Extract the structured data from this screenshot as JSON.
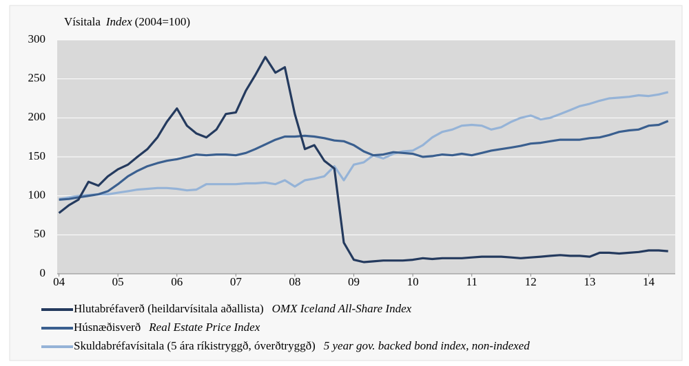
{
  "chart_data": {
    "type": "line",
    "y_label": [
      "Vísitala",
      "Index",
      "(2004=100)"
    ],
    "x": [
      2004,
      2004.17,
      2004.33,
      2004.5,
      2004.67,
      2004.83,
      2005,
      2005.17,
      2005.33,
      2005.5,
      2005.67,
      2005.83,
      2006,
      2006.17,
      2006.33,
      2006.5,
      2006.67,
      2006.83,
      2007,
      2007.17,
      2007.33,
      2007.5,
      2007.67,
      2007.83,
      2008,
      2008.17,
      2008.33,
      2008.5,
      2008.67,
      2008.83,
      2009,
      2009.17,
      2009.33,
      2009.5,
      2009.67,
      2009.83,
      2010,
      2010.17,
      2010.33,
      2010.5,
      2010.67,
      2010.83,
      2011,
      2011.17,
      2011.33,
      2011.5,
      2011.67,
      2011.83,
      2012,
      2012.17,
      2012.33,
      2012.5,
      2012.67,
      2012.83,
      2013,
      2013.17,
      2013.33,
      2013.5,
      2013.67,
      2013.83,
      2014,
      2014.17,
      2014.33
    ],
    "series": [
      {
        "name": "Hlutabréfaverð (heildarvísitala aðallista)",
        "translation": "OMX Iceland All-Share Index",
        "color": "#243a5e",
        "values": [
          78,
          88,
          95,
          118,
          113,
          125,
          134,
          140,
          150,
          160,
          175,
          195,
          212,
          190,
          180,
          175,
          185,
          205,
          207,
          235,
          255,
          278,
          258,
          265,
          205,
          160,
          165,
          145,
          135,
          40,
          18,
          15,
          16,
          17,
          17,
          17,
          18,
          20,
          19,
          20,
          20,
          20,
          21,
          22,
          22,
          22,
          21,
          20,
          21,
          22,
          23,
          24,
          23,
          23,
          22,
          27,
          27,
          26,
          27,
          28,
          30,
          30,
          29
        ]
      },
      {
        "name": "Húsnæðisverð",
        "translation": "Real Estate Price Index",
        "color": "#3a5f8f",
        "values": [
          95,
          96,
          98,
          100,
          102,
          106,
          115,
          125,
          132,
          138,
          142,
          145,
          147,
          150,
          153,
          152,
          153,
          153,
          152,
          155,
          160,
          166,
          172,
          176,
          176,
          177,
          176,
          174,
          171,
          170,
          165,
          157,
          152,
          153,
          156,
          155,
          154,
          150,
          151,
          153,
          152,
          154,
          152,
          155,
          158,
          160,
          162,
          164,
          167,
          168,
          170,
          172,
          172,
          172,
          174,
          175,
          178,
          182,
          184,
          185,
          190,
          191,
          196
        ]
      },
      {
        "name": "Skuldabréfavísitala (5 ára ríkistryggð, óverðtryggð)",
        "translation": "5 year gov. backed bond index, non-indexed",
        "color": "#95b3d7",
        "values": [
          96,
          98,
          100,
          101,
          102,
          102,
          104,
          106,
          108,
          109,
          110,
          110,
          109,
          107,
          108,
          115,
          115,
          115,
          115,
          116,
          116,
          117,
          115,
          120,
          112,
          120,
          122,
          125,
          138,
          120,
          140,
          143,
          152,
          148,
          154,
          157,
          158,
          165,
          175,
          182,
          185,
          190,
          191,
          190,
          185,
          188,
          195,
          200,
          203,
          198,
          200,
          205,
          210,
          215,
          218,
          222,
          225,
          226,
          227,
          229,
          228,
          230,
          233
        ]
      }
    ],
    "xlim": [
      2003.97,
      2014.45
    ],
    "xticks": [
      {
        "value": 2004,
        "label": "04"
      },
      {
        "value": 2005,
        "label": "05"
      },
      {
        "value": 2006,
        "label": "06"
      },
      {
        "value": 2007,
        "label": "07"
      },
      {
        "value": 2008,
        "label": "08"
      },
      {
        "value": 2009,
        "label": "09"
      },
      {
        "value": 2010,
        "label": "10"
      },
      {
        "value": 2011,
        "label": "11"
      },
      {
        "value": 2012,
        "label": "12"
      },
      {
        "value": 2013,
        "label": "13"
      },
      {
        "value": 2014,
        "label": "14"
      }
    ],
    "ylim": [
      0,
      300
    ],
    "yticks": [
      0,
      50,
      100,
      150,
      200,
      250,
      300
    ],
    "grid": true
  }
}
